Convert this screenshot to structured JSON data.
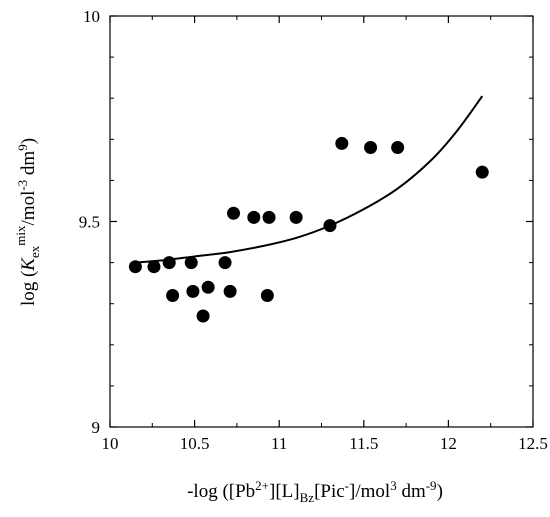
{
  "chart_data": {
    "type": "scatter",
    "title": "",
    "xlabel": {
      "p1": "-log ([Pb",
      "sup1": "2+",
      "p2": "][L]",
      "sub1": "Bz",
      "p3": "[Pic",
      "sup2": "-",
      "p4": "]/mol",
      "sup3": "3",
      "p5": " dm",
      "sup4": "-9",
      "p6": ")"
    },
    "ylabel": {
      "p1": "log (",
      "k": "K",
      "sub1": "ex",
      "sup1": "mix",
      "p2": "/mol",
      "sup2": "-3",
      "p3": " dm",
      "sup3": "9",
      "p4": ")"
    },
    "xlim": [
      10,
      12.5
    ],
    "ylim": [
      9,
      10
    ],
    "xticks": [
      10,
      10.5,
      11,
      11.5,
      12,
      12.5
    ],
    "yticks": [
      9,
      9.5,
      10
    ],
    "xtick_labels": [
      "10",
      "10.5",
      "11",
      "11.5",
      "12",
      "12.5"
    ],
    "ytick_labels": [
      "9",
      "9.5",
      "10"
    ],
    "grid": false,
    "legend": "none",
    "points": {
      "x": [
        10.15,
        10.26,
        10.35,
        10.37,
        10.48,
        10.49,
        10.55,
        10.58,
        10.68,
        10.71,
        10.73,
        10.85,
        10.93,
        10.94,
        11.1,
        11.3,
        11.37,
        11.54,
        11.7,
        12.2
      ],
      "y": [
        9.39,
        9.39,
        9.4,
        9.32,
        9.4,
        9.33,
        9.27,
        9.34,
        9.4,
        9.33,
        9.52,
        9.51,
        9.32,
        9.51,
        9.51,
        9.49,
        9.69,
        9.68,
        9.68,
        9.62
      ]
    },
    "fit_curve": {
      "x": [
        10.15,
        10.3,
        10.5,
        10.7,
        10.9,
        11.1,
        11.3,
        11.5,
        11.7,
        11.9,
        12.05,
        12.2
      ],
      "y": [
        9.4,
        9.405,
        9.415,
        9.425,
        9.44,
        9.46,
        9.49,
        9.53,
        9.58,
        9.65,
        9.72,
        9.805
      ]
    }
  }
}
